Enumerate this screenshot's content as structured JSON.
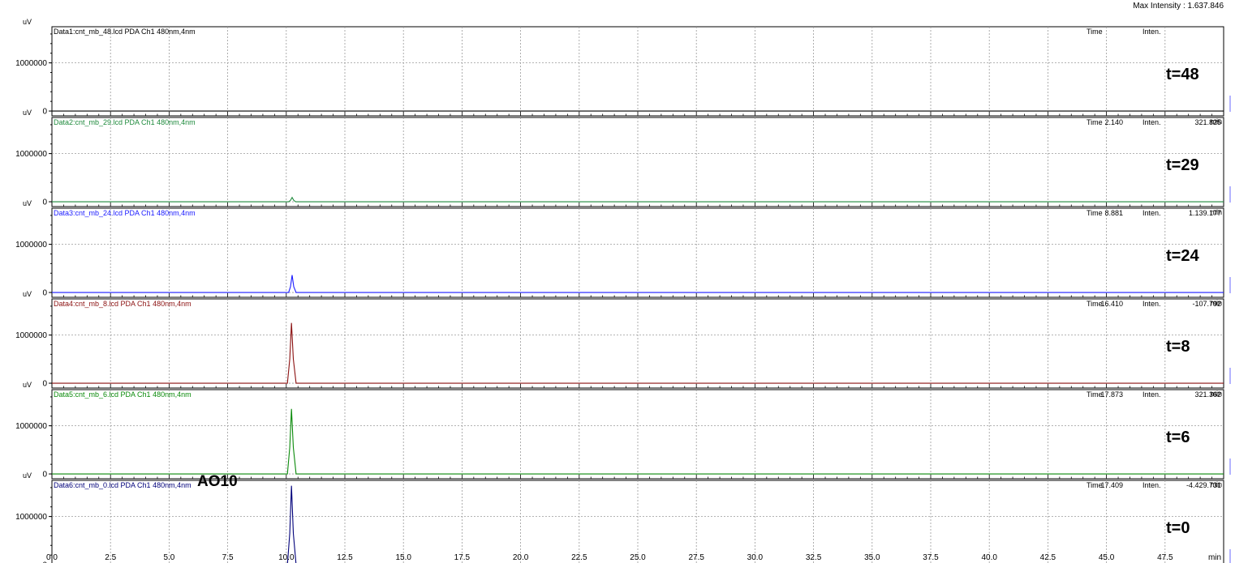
{
  "header": {
    "max_intensity": "Max Intensity : 1.637.846"
  },
  "x_axis": {
    "unit": "min",
    "range": [
      0,
      50
    ],
    "ticks": [
      "0.0",
      "2.5",
      "5.0",
      "7.5",
      "10.0",
      "12.5",
      "15.0",
      "17.5",
      "20.0",
      "22.5",
      "25.0",
      "27.5",
      "30.0",
      "32.5",
      "35.0",
      "37.5",
      "40.0",
      "42.5",
      "45.0",
      "47.5"
    ]
  },
  "chart_data": {
    "type": "line",
    "xlabel": "min",
    "ylabel": "uV",
    "xlim": [
      0,
      50
    ],
    "ylim": [
      -100000,
      1750000
    ],
    "y_ticks": [
      "0",
      "1000000"
    ],
    "grid": true,
    "panels": [
      {
        "data_label": "Data1:cnt_mb_48.lcd PDA Ch1 480nm,4nm",
        "color": "#000000",
        "readout_time_label": "Time",
        "readout_time": "",
        "readout_inten_label": "Inten.",
        "readout_inten": "",
        "tag": "t=48",
        "peak": null,
        "points": [
          [
            0,
            0
          ],
          [
            50,
            0
          ]
        ]
      },
      {
        "data_label": "Data2:cnt_mb_29.lcd PDA Ch1 480nm,4nm",
        "color": "#1e8a3c",
        "readout_time_label": "Time",
        "readout_time": "2.140",
        "readout_inten_label": "Inten.",
        "readout_inten": "321.825",
        "tag": "t=29",
        "points": [
          [
            0,
            0
          ],
          [
            10.1,
            0
          ],
          [
            10.18,
            30000
          ],
          [
            10.25,
            90000
          ],
          [
            10.32,
            30000
          ],
          [
            10.4,
            0
          ],
          [
            50,
            0
          ]
        ]
      },
      {
        "data_label": "Data3:cnt_mb_24.lcd PDA Ch1 480nm,4nm",
        "color": "#1a1aff",
        "readout_time_label": "Time",
        "readout_time": "8.881",
        "readout_inten_label": "Inten.",
        "readout_inten": "1.139.177",
        "tag": "t=24",
        "points": [
          [
            0,
            0
          ],
          [
            10.1,
            0
          ],
          [
            10.18,
            120000
          ],
          [
            10.25,
            360000
          ],
          [
            10.32,
            120000
          ],
          [
            10.42,
            0
          ],
          [
            50,
            0
          ]
        ]
      },
      {
        "data_label": "Data4:cnt_mb_8.lcd PDA Ch1 480nm,4nm",
        "color": "#8b1010",
        "readout_time_label": "Time",
        "readout_time": "16.410",
        "readout_inten_label": "Inten.",
        "readout_inten": "-107.792",
        "tag": "t=8",
        "points": [
          [
            0,
            0
          ],
          [
            10.05,
            0
          ],
          [
            10.15,
            500000
          ],
          [
            10.22,
            1250000
          ],
          [
            10.3,
            500000
          ],
          [
            10.42,
            0
          ],
          [
            50,
            0
          ]
        ]
      },
      {
        "data_label": "Data5:cnt_mb_6.lcd PDA Ch1 480nm,4nm",
        "color": "#0a8a0a",
        "readout_time_label": "Time",
        "readout_time": "17.873",
        "readout_inten_label": "Inten.",
        "readout_inten": "321.362",
        "tag": "t=6",
        "points": [
          [
            0,
            0
          ],
          [
            10.05,
            0
          ],
          [
            10.15,
            550000
          ],
          [
            10.22,
            1350000
          ],
          [
            10.3,
            550000
          ],
          [
            10.42,
            0
          ],
          [
            50,
            0
          ]
        ]
      },
      {
        "data_label": "Data6:cnt_mb_0.lcd PDA Ch1 480nm,4nm",
        "color": "#00007a",
        "readout_time_label": "Time",
        "readout_time": "17.409",
        "readout_inten_label": "Inten.",
        "readout_inten": "-4.429.731",
        "tag": "t=0",
        "points": [
          [
            0,
            0
          ],
          [
            10.05,
            0
          ],
          [
            10.15,
            650000
          ],
          [
            10.22,
            1637846
          ],
          [
            10.3,
            650000
          ],
          [
            10.42,
            0
          ],
          [
            50,
            0
          ]
        ]
      }
    ],
    "annotations": [
      {
        "panel": 5,
        "text": "AO10"
      }
    ]
  }
}
